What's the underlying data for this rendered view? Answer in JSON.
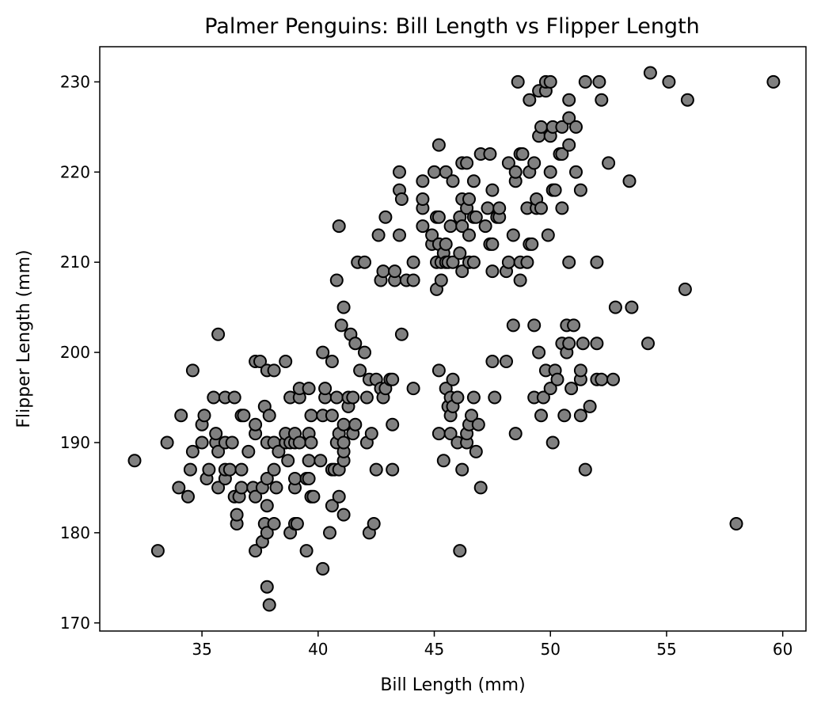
{
  "chart_data": {
    "type": "scatter",
    "title": "Palmer Penguins: Bill Length vs Flipper Length",
    "xlabel": "Bill Length (mm)",
    "ylabel": "Flipper Length (mm)",
    "xlim": [
      30.6,
      61.0
    ],
    "ylim": [
      169.1,
      233.9
    ],
    "xticks": [
      35,
      40,
      45,
      50,
      55,
      60
    ],
    "yticks": [
      170,
      180,
      190,
      200,
      210,
      220,
      230
    ],
    "grid": false,
    "legend": "none",
    "marker_fill": "#808080",
    "marker_edge": "#000000",
    "points": [
      [
        32.1,
        188
      ],
      [
        33.1,
        178
      ],
      [
        33.5,
        190
      ],
      [
        34.0,
        185
      ],
      [
        34.1,
        193
      ],
      [
        34.4,
        184
      ],
      [
        34.5,
        187
      ],
      [
        34.6,
        189
      ],
      [
        34.6,
        198
      ],
      [
        35.0,
        190
      ],
      [
        35.0,
        192
      ],
      [
        35.1,
        193
      ],
      [
        35.2,
        186
      ],
      [
        35.3,
        187
      ],
      [
        35.5,
        195
      ],
      [
        35.6,
        190
      ],
      [
        35.6,
        191
      ],
      [
        35.7,
        185
      ],
      [
        35.7,
        189
      ],
      [
        35.7,
        202
      ],
      [
        36.0,
        186
      ],
      [
        36.0,
        187
      ],
      [
        36.0,
        190
      ],
      [
        36.0,
        195
      ],
      [
        36.2,
        187
      ],
      [
        36.3,
        190
      ],
      [
        36.4,
        184
      ],
      [
        36.4,
        195
      ],
      [
        36.5,
        181
      ],
      [
        36.5,
        182
      ],
      [
        36.6,
        184
      ],
      [
        36.7,
        185
      ],
      [
        36.7,
        187
      ],
      [
        36.7,
        193
      ],
      [
        36.8,
        193
      ],
      [
        37.0,
        189
      ],
      [
        37.2,
        185
      ],
      [
        37.3,
        178
      ],
      [
        37.3,
        184
      ],
      [
        37.3,
        191
      ],
      [
        37.3,
        192
      ],
      [
        37.3,
        199
      ],
      [
        37.5,
        199
      ],
      [
        37.6,
        179
      ],
      [
        37.6,
        185
      ],
      [
        37.7,
        181
      ],
      [
        37.7,
        194
      ],
      [
        37.8,
        174
      ],
      [
        37.8,
        180
      ],
      [
        37.8,
        183
      ],
      [
        37.8,
        186
      ],
      [
        37.8,
        190
      ],
      [
        37.8,
        198
      ],
      [
        37.9,
        172
      ],
      [
        37.9,
        193
      ],
      [
        38.1,
        181
      ],
      [
        38.1,
        187
      ],
      [
        38.1,
        190
      ],
      [
        38.1,
        198
      ],
      [
        38.2,
        185
      ],
      [
        38.3,
        189
      ],
      [
        38.6,
        190
      ],
      [
        38.6,
        191
      ],
      [
        38.6,
        199
      ],
      [
        38.7,
        188
      ],
      [
        38.8,
        180
      ],
      [
        38.8,
        190
      ],
      [
        38.8,
        195
      ],
      [
        39.0,
        181
      ],
      [
        39.0,
        185
      ],
      [
        39.0,
        186
      ],
      [
        39.0,
        190
      ],
      [
        39.0,
        191
      ],
      [
        39.1,
        181
      ],
      [
        39.2,
        190
      ],
      [
        39.2,
        195
      ],
      [
        39.2,
        196
      ],
      [
        39.5,
        178
      ],
      [
        39.5,
        186
      ],
      [
        39.6,
        186
      ],
      [
        39.6,
        188
      ],
      [
        39.6,
        191
      ],
      [
        39.6,
        196
      ],
      [
        39.7,
        184
      ],
      [
        39.7,
        190
      ],
      [
        39.7,
        193
      ],
      [
        39.8,
        184
      ],
      [
        40.1,
        188
      ],
      [
        40.2,
        176
      ],
      [
        40.2,
        193
      ],
      [
        40.2,
        200
      ],
      [
        40.3,
        195
      ],
      [
        40.3,
        196
      ],
      [
        40.5,
        180
      ],
      [
        40.6,
        183
      ],
      [
        40.6,
        187
      ],
      [
        40.6,
        193
      ],
      [
        40.6,
        199
      ],
      [
        40.7,
        187
      ],
      [
        40.8,
        190
      ],
      [
        40.8,
        195
      ],
      [
        40.8,
        208
      ],
      [
        40.9,
        184
      ],
      [
        40.9,
        187
      ],
      [
        40.9,
        191
      ],
      [
        40.9,
        214
      ],
      [
        41.0,
        203
      ],
      [
        41.1,
        182
      ],
      [
        41.1,
        188
      ],
      [
        41.1,
        189
      ],
      [
        41.1,
        190
      ],
      [
        41.1,
        192
      ],
      [
        41.1,
        205
      ],
      [
        41.3,
        194
      ],
      [
        41.3,
        195
      ],
      [
        41.4,
        202
      ],
      [
        41.5,
        191
      ],
      [
        41.5,
        195
      ],
      [
        41.6,
        192
      ],
      [
        41.6,
        201
      ],
      [
        41.7,
        210
      ],
      [
        41.8,
        198
      ],
      [
        42.0,
        200
      ],
      [
        42.0,
        210
      ],
      [
        42.1,
        190
      ],
      [
        42.1,
        195
      ],
      [
        42.2,
        180
      ],
      [
        42.2,
        197
      ],
      [
        42.3,
        191
      ],
      [
        42.4,
        181
      ],
      [
        42.5,
        187
      ],
      [
        42.5,
        197
      ],
      [
        42.6,
        213
      ],
      [
        42.7,
        196
      ],
      [
        42.7,
        208
      ],
      [
        42.8,
        195
      ],
      [
        42.8,
        209
      ],
      [
        42.9,
        196
      ],
      [
        42.9,
        215
      ],
      [
        43.1,
        197
      ],
      [
        43.2,
        187
      ],
      [
        43.2,
        192
      ],
      [
        43.2,
        197
      ],
      [
        43.3,
        208
      ],
      [
        43.3,
        209
      ],
      [
        43.5,
        213
      ],
      [
        43.5,
        218
      ],
      [
        43.5,
        220
      ],
      [
        43.6,
        202
      ],
      [
        43.6,
        217
      ],
      [
        43.8,
        208
      ],
      [
        44.1,
        196
      ],
      [
        44.1,
        208
      ],
      [
        44.1,
        210
      ],
      [
        44.5,
        214
      ],
      [
        44.5,
        216
      ],
      [
        44.5,
        217
      ],
      [
        44.5,
        219
      ],
      [
        44.9,
        212
      ],
      [
        44.9,
        213
      ],
      [
        45.0,
        220
      ],
      [
        45.1,
        207
      ],
      [
        45.1,
        210
      ],
      [
        45.1,
        215
      ],
      [
        45.2,
        191
      ],
      [
        45.2,
        198
      ],
      [
        45.2,
        212
      ],
      [
        45.2,
        215
      ],
      [
        45.2,
        223
      ],
      [
        45.3,
        208
      ],
      [
        45.3,
        210
      ],
      [
        45.4,
        188
      ],
      [
        45.4,
        211
      ],
      [
        45.5,
        196
      ],
      [
        45.5,
        210
      ],
      [
        45.5,
        212
      ],
      [
        45.5,
        220
      ],
      [
        45.6,
        194
      ],
      [
        45.6,
        210
      ],
      [
        45.7,
        191
      ],
      [
        45.7,
        193
      ],
      [
        45.7,
        195
      ],
      [
        45.7,
        214
      ],
      [
        45.8,
        194
      ],
      [
        45.8,
        197
      ],
      [
        45.8,
        210
      ],
      [
        45.8,
        219
      ],
      [
        46.0,
        190
      ],
      [
        46.0,
        195
      ],
      [
        46.1,
        178
      ],
      [
        46.1,
        211
      ],
      [
        46.1,
        215
      ],
      [
        46.2,
        187
      ],
      [
        46.2,
        209
      ],
      [
        46.2,
        214
      ],
      [
        46.2,
        217
      ],
      [
        46.2,
        221
      ],
      [
        46.4,
        190
      ],
      [
        46.4,
        191
      ],
      [
        46.4,
        216
      ],
      [
        46.4,
        221
      ],
      [
        46.5,
        192
      ],
      [
        46.5,
        210
      ],
      [
        46.5,
        213
      ],
      [
        46.5,
        217
      ],
      [
        46.6,
        193
      ],
      [
        46.7,
        195
      ],
      [
        46.7,
        210
      ],
      [
        46.7,
        215
      ],
      [
        46.7,
        219
      ],
      [
        46.8,
        189
      ],
      [
        46.8,
        215
      ],
      [
        46.9,
        192
      ],
      [
        47.0,
        185
      ],
      [
        47.0,
        222
      ],
      [
        47.2,
        214
      ],
      [
        47.3,
        216
      ],
      [
        47.4,
        212
      ],
      [
        47.4,
        222
      ],
      [
        47.5,
        199
      ],
      [
        47.5,
        209
      ],
      [
        47.5,
        212
      ],
      [
        47.5,
        218
      ],
      [
        47.6,
        195
      ],
      [
        47.7,
        215
      ],
      [
        47.8,
        215
      ],
      [
        47.8,
        216
      ],
      [
        48.1,
        199
      ],
      [
        48.1,
        209
      ],
      [
        48.2,
        210
      ],
      [
        48.2,
        221
      ],
      [
        48.4,
        203
      ],
      [
        48.4,
        213
      ],
      [
        48.5,
        191
      ],
      [
        48.5,
        219
      ],
      [
        48.5,
        220
      ],
      [
        48.6,
        230
      ],
      [
        48.7,
        208
      ],
      [
        48.7,
        210
      ],
      [
        48.7,
        222
      ],
      [
        48.8,
        222
      ],
      [
        49.0,
        210
      ],
      [
        49.0,
        216
      ],
      [
        49.1,
        212
      ],
      [
        49.1,
        220
      ],
      [
        49.1,
        228
      ],
      [
        49.2,
        212
      ],
      [
        49.3,
        195
      ],
      [
        49.3,
        203
      ],
      [
        49.3,
        221
      ],
      [
        49.4,
        216
      ],
      [
        49.4,
        217
      ],
      [
        49.5,
        200
      ],
      [
        49.5,
        224
      ],
      [
        49.5,
        229
      ],
      [
        49.6,
        193
      ],
      [
        49.6,
        216
      ],
      [
        49.6,
        225
      ],
      [
        49.7,
        195
      ],
      [
        49.8,
        198
      ],
      [
        49.8,
        229
      ],
      [
        49.8,
        230
      ],
      [
        49.9,
        213
      ],
      [
        50.0,
        196
      ],
      [
        50.0,
        220
      ],
      [
        50.0,
        224
      ],
      [
        50.0,
        230
      ],
      [
        50.1,
        190
      ],
      [
        50.1,
        218
      ],
      [
        50.1,
        225
      ],
      [
        50.2,
        198
      ],
      [
        50.2,
        218
      ],
      [
        50.3,
        197
      ],
      [
        50.4,
        222
      ],
      [
        50.5,
        201
      ],
      [
        50.5,
        216
      ],
      [
        50.5,
        222
      ],
      [
        50.5,
        225
      ],
      [
        50.6,
        193
      ],
      [
        50.7,
        200
      ],
      [
        50.7,
        203
      ],
      [
        50.8,
        201
      ],
      [
        50.8,
        210
      ],
      [
        50.8,
        223
      ],
      [
        50.8,
        226
      ],
      [
        50.8,
        228
      ],
      [
        50.9,
        196
      ],
      [
        51.0,
        203
      ],
      [
        51.1,
        220
      ],
      [
        51.1,
        225
      ],
      [
        51.3,
        193
      ],
      [
        51.3,
        197
      ],
      [
        51.3,
        198
      ],
      [
        51.3,
        218
      ],
      [
        51.4,
        201
      ],
      [
        51.5,
        187
      ],
      [
        51.5,
        230
      ],
      [
        51.7,
        194
      ],
      [
        52.0,
        197
      ],
      [
        52.0,
        201
      ],
      [
        52.0,
        210
      ],
      [
        52.1,
        230
      ],
      [
        52.2,
        197
      ],
      [
        52.2,
        228
      ],
      [
        52.5,
        221
      ],
      [
        52.7,
        197
      ],
      [
        52.8,
        205
      ],
      [
        53.4,
        219
      ],
      [
        53.5,
        205
      ],
      [
        54.2,
        201
      ],
      [
        54.3,
        231
      ],
      [
        55.1,
        230
      ],
      [
        55.8,
        207
      ],
      [
        55.9,
        228
      ],
      [
        58.0,
        181
      ],
      [
        59.6,
        230
      ]
    ]
  }
}
